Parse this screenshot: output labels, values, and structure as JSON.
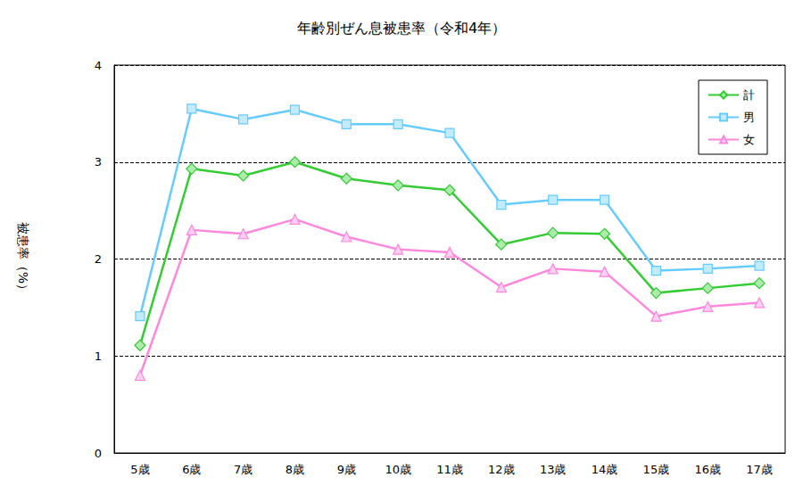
{
  "chart_data": {
    "type": "line",
    "title": "年齢別ぜん息被患率（令和4年）",
    "y_label": "被患率（%）",
    "categories": [
      "5歳",
      "6歳",
      "7歳",
      "8歳",
      "9歳",
      "10歳",
      "11歳",
      "12歳",
      "13歳",
      "14歳",
      "15歳",
      "16歳",
      "17歳"
    ],
    "series": [
      {
        "name": "計",
        "color": "#33cc33",
        "marker": "diamond",
        "values": [
          1.11,
          2.93,
          2.86,
          3.0,
          2.83,
          2.76,
          2.71,
          2.15,
          2.27,
          2.26,
          1.65,
          1.7,
          1.75
        ]
      },
      {
        "name": "男",
        "color": "#66ccff",
        "marker": "square",
        "values": [
          1.41,
          3.55,
          3.44,
          3.54,
          3.39,
          3.39,
          3.3,
          2.56,
          2.61,
          2.61,
          1.88,
          1.9,
          1.93
        ]
      },
      {
        "name": "女",
        "color": "#ff88dd",
        "marker": "triangle",
        "values": [
          0.8,
          2.3,
          2.26,
          2.41,
          2.23,
          2.1,
          2.07,
          1.71,
          1.9,
          1.87,
          1.41,
          1.51,
          1.55
        ]
      }
    ],
    "ylim": [
      0,
      4
    ],
    "yticks": [
      0,
      1,
      2,
      3,
      4
    ],
    "grid": true,
    "legend": "upper right"
  }
}
